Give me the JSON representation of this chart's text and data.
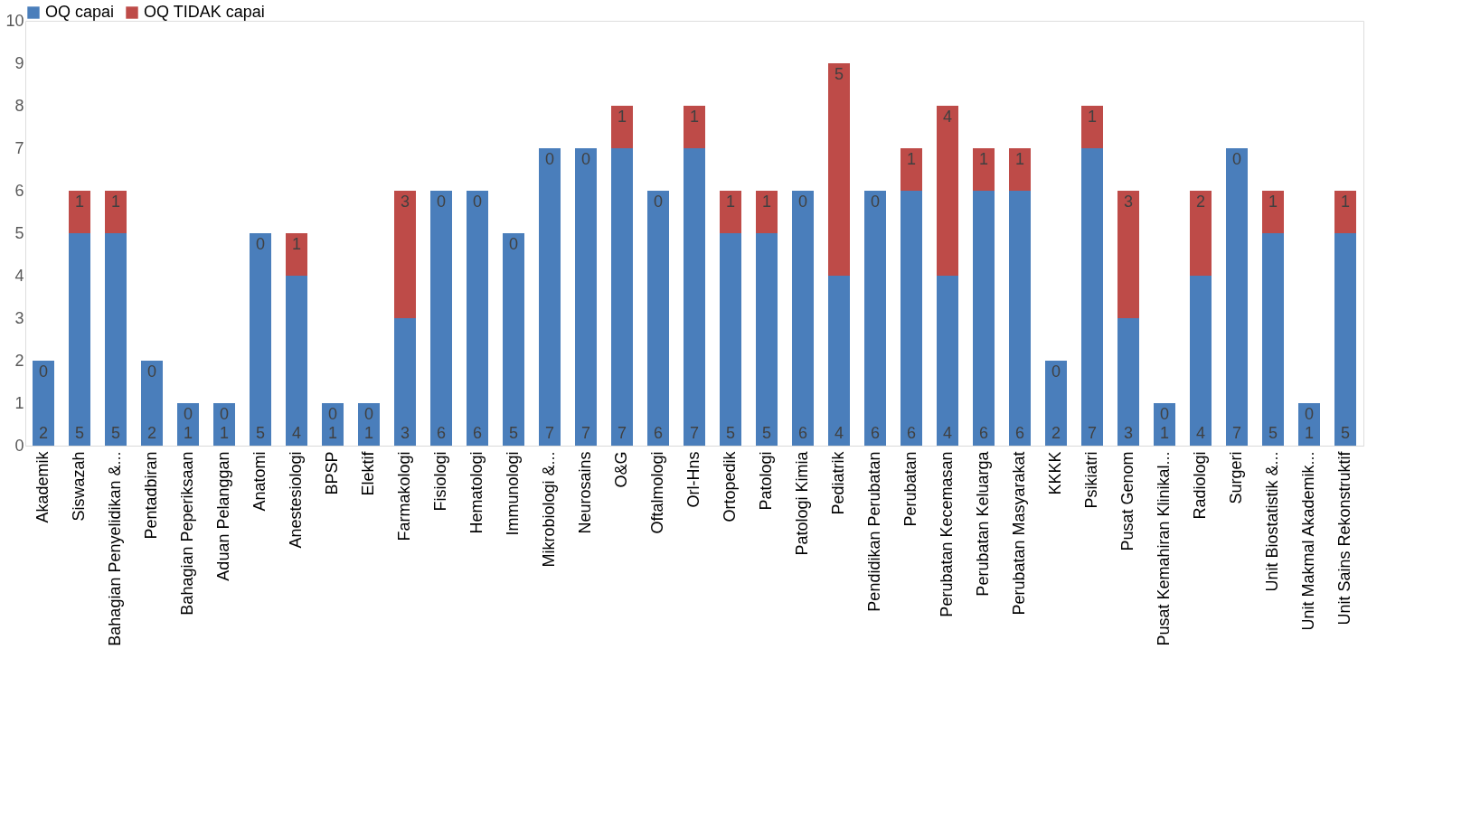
{
  "chart_data": {
    "type": "bar",
    "stacked": true,
    "data_labels": true,
    "legend": "top",
    "grid": false,
    "categories": [
      "Akademik",
      "Siswazah",
      "Bahagian Penyelidikan &...",
      "Pentadbiran",
      "Bahagian Peperiksaan",
      "Aduan Pelanggan",
      "Anatomi",
      "Anestesiologi",
      "BPSP",
      "Elektif",
      "Farmakologi",
      "Fisiologi",
      "Hematologi",
      "Immunologi",
      "Mikrobiologi &...",
      "Neurosains",
      "O&G",
      "Oftalmologi",
      "Orl-Hns",
      "Ortopedik",
      "Patologi",
      "Patologi Kimia",
      "Pediatrik",
      "Pendidikan Perubatan",
      "Perubatan",
      "Perubatan Kecemasan",
      "Perubatan Keluarga",
      "Perubatan Masyarakat",
      "KKKK",
      "Psikiatri",
      "Pusat Genom",
      "Pusat Kemahiran Klinikal...",
      "Radiologi",
      "Surgeri",
      "Unit Biostatistik &...",
      "Unit Makmal Akademik...",
      "Unit Sains Rekonstruktif"
    ],
    "series": [
      {
        "name": "OQ capai",
        "color": "#4a7ebb",
        "values": [
          2,
          5,
          5,
          2,
          1,
          1,
          5,
          4,
          1,
          1,
          3,
          6,
          6,
          5,
          7,
          7,
          7,
          6,
          7,
          5,
          5,
          6,
          4,
          6,
          6,
          4,
          6,
          6,
          2,
          7,
          3,
          1,
          4,
          7,
          5,
          1,
          5
        ]
      },
      {
        "name": "OQ TIDAK capai",
        "color": "#be4b48",
        "values": [
          0,
          1,
          1,
          0,
          0,
          0,
          0,
          1,
          0,
          0,
          3,
          0,
          0,
          0,
          0,
          0,
          1,
          0,
          1,
          1,
          1,
          0,
          5,
          0,
          1,
          4,
          1,
          1,
          0,
          1,
          3,
          0,
          2,
          0,
          1,
          0,
          1
        ]
      }
    ],
    "ylim": [
      0,
      10
    ],
    "yticks": [
      0,
      1,
      2,
      3,
      4,
      5,
      6,
      7,
      8,
      9,
      10
    ]
  }
}
